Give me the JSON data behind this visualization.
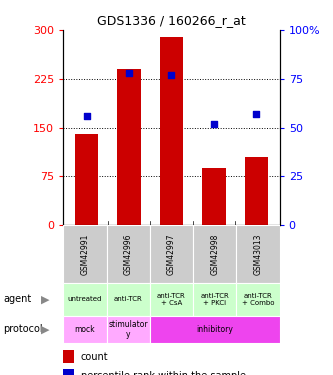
{
  "title": "GDS1336 / 160266_r_at",
  "samples": [
    "GSM42991",
    "GSM42996",
    "GSM42997",
    "GSM42998",
    "GSM43013"
  ],
  "counts": [
    140,
    240,
    290,
    88,
    105
  ],
  "percentile_ranks": [
    56,
    78,
    77,
    52,
    57
  ],
  "ylim_count": [
    0,
    300
  ],
  "ylim_pct": [
    0,
    100
  ],
  "yticks_count": [
    0,
    75,
    150,
    225,
    300
  ],
  "yticks_pct": [
    0,
    25,
    50,
    75,
    100
  ],
  "bar_color": "#cc0000",
  "dot_color": "#0000cc",
  "agent_labels": [
    "untreated",
    "anti-TCR",
    "anti-TCR\n+ CsA",
    "anti-TCR\n+ PKCi",
    "anti-TCR\n+ Combo"
  ],
  "agent_bg": "#ccffcc",
  "protocol_data": [
    [
      0,
      1,
      "mock",
      "#ffaaff"
    ],
    [
      1,
      2,
      "stimulator\ny",
      "#ffaaff"
    ],
    [
      2,
      5,
      "inhibitory",
      "#ee44ee"
    ]
  ],
  "sample_bg": "#cccccc",
  "legend_count_color": "#cc0000",
  "legend_pct_color": "#0000cc",
  "gridline_color": "#000000",
  "spine_color": "#000000"
}
